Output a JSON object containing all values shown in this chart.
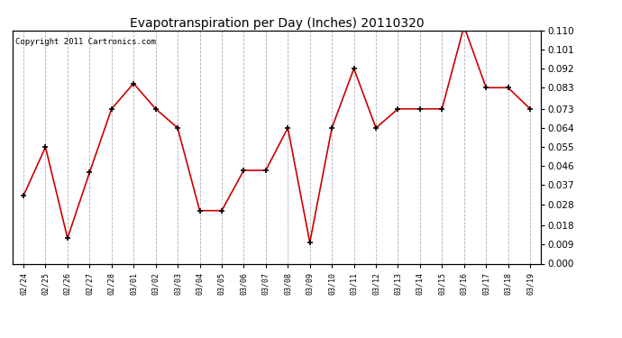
{
  "title": "Evapotranspiration per Day (Inches) 20110320",
  "copyright": "Copyright 2011 Cartronics.com",
  "dates": [
    "02/24",
    "02/25",
    "02/26",
    "02/27",
    "02/28",
    "03/01",
    "03/02",
    "03/03",
    "03/04",
    "03/05",
    "03/06",
    "03/07",
    "03/08",
    "03/09",
    "03/10",
    "03/11",
    "03/12",
    "03/13",
    "03/14",
    "03/15",
    "03/16",
    "03/17",
    "03/18",
    "03/19"
  ],
  "values": [
    0.032,
    0.055,
    0.012,
    0.043,
    0.073,
    0.085,
    0.073,
    0.064,
    0.025,
    0.025,
    0.044,
    0.044,
    0.064,
    0.01,
    0.064,
    0.092,
    0.064,
    0.073,
    0.073,
    0.073,
    0.112,
    0.083,
    0.083,
    0.073
  ],
  "line_color": "#cc0000",
  "background_color": "#ffffff",
  "grid_color": "#b0b0b0",
  "ylim_min": 0.0,
  "ylim_max": 0.11,
  "yticks": [
    0.0,
    0.009,
    0.018,
    0.028,
    0.037,
    0.046,
    0.055,
    0.064,
    0.073,
    0.083,
    0.092,
    0.101,
    0.11
  ],
  "title_fontsize": 10,
  "copyright_fontsize": 6.5,
  "xtick_fontsize": 6,
  "ytick_fontsize": 7.5,
  "figwidth": 6.9,
  "figheight": 3.75,
  "dpi": 100
}
